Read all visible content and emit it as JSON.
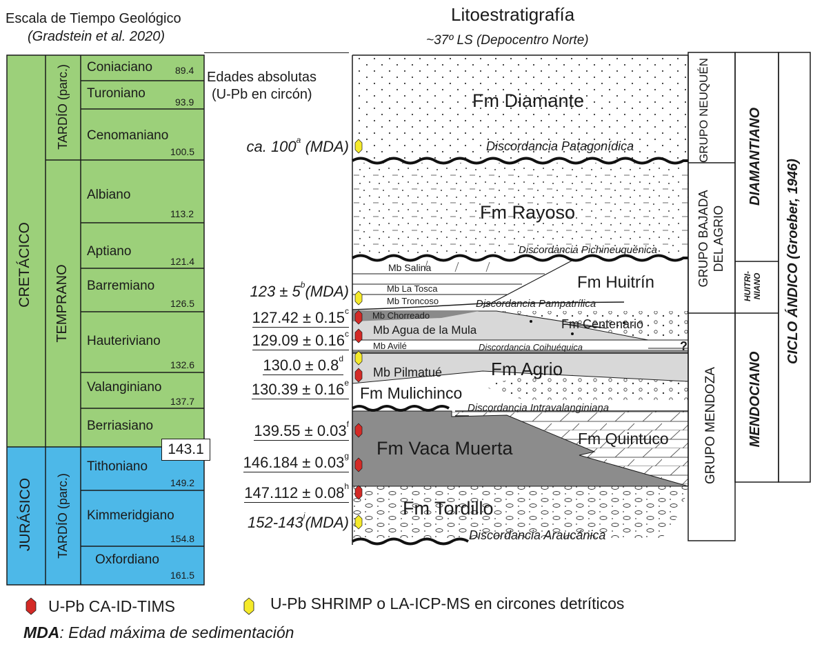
{
  "header": {
    "left_title": "Escala de Tiempo Geológico",
    "left_subtitle": "(Gradstein et al. 2020)",
    "right_title": "Litoestratigrafía",
    "right_subtitle_approx": "~",
    "right_subtitle": "37º LS (Depocentro Norte)"
  },
  "periods": {
    "cretacico": "CRETÁCICO",
    "jurasico": "JURÁSICO",
    "cret_tardio": "TARDÍO (parc.)",
    "cret_temprano": "TEMPRANO",
    "jur_tardio": "TARDÍO (parc.)",
    "boundary_age": "143.1",
    "cretaceous_color": "#9cd07a",
    "jurassic_color": "#4db8e8"
  },
  "stages": [
    {
      "name": "Coniaciano",
      "age": "89.4"
    },
    {
      "name": "Turoniano",
      "age": "93.9"
    },
    {
      "name": "Cenomaniano",
      "age": "100.5"
    },
    {
      "name": "Albiano",
      "age": "113.2"
    },
    {
      "name": "Aptiano",
      "age": "121.4"
    },
    {
      "name": "Barremiano",
      "age": "126.5"
    },
    {
      "name": "Hauteriviano",
      "age": "132.6"
    },
    {
      "name": "Valanginiano",
      "age": "137.7"
    },
    {
      "name": "Berriasiano",
      "age": ""
    },
    {
      "name": "Tithoniano",
      "age": "149.2"
    },
    {
      "name": "Kimmeridgiano",
      "age": "154.8"
    },
    {
      "name": "Oxfordiano",
      "age": "161.5"
    }
  ],
  "ages_header": {
    "line1": "Edades absolutas",
    "line2": "(U-Pb en circón)"
  },
  "ages": [
    {
      "text": "ca. 100",
      "sup": "a",
      "suffix": " (MDA)",
      "italic": true,
      "underline": false,
      "markers": [
        "shrimp"
      ]
    },
    {
      "text": "123 ± 5",
      "sup": "b",
      "suffix": "(MDA)",
      "italic": true,
      "underline": false,
      "markers": [
        "shrimp"
      ]
    },
    {
      "text": "127.42 ± 0.15",
      "sup": "c",
      "suffix": "",
      "italic": false,
      "underline": true,
      "markers": [
        "tims"
      ]
    },
    {
      "text": "129.09 ± 0.16",
      "sup": "c",
      "suffix": "",
      "italic": false,
      "underline": true,
      "markers": [
        "tims"
      ]
    },
    {
      "text": "130.0 ± 0.8",
      "sup": "d",
      "suffix": "",
      "italic": false,
      "underline": true,
      "markers": [
        "shrimp",
        "tims"
      ]
    },
    {
      "text": "130.39 ± 0.16",
      "sup": "e",
      "suffix": "",
      "italic": false,
      "underline": true,
      "markers": []
    },
    {
      "text": "139.55 ± 0.03",
      "sup": "f",
      "suffix": "",
      "italic": false,
      "underline": true,
      "markers": [
        "tims"
      ]
    },
    {
      "text": "146.184 ± 0.03",
      "sup": "g",
      "suffix": "",
      "italic": false,
      "underline": true,
      "markers": [
        "tims"
      ]
    },
    {
      "text": "147.112 ± 0.08",
      "sup": "h",
      "suffix": "",
      "italic": false,
      "underline": true,
      "markers": [
        "tims"
      ]
    },
    {
      "text": "152-143",
      "sup": "i",
      "suffix": "(MDA)",
      "italic": true,
      "underline": false,
      "markers": [
        "shrimp"
      ]
    }
  ],
  "formations": {
    "diamante": "Fm Diamante",
    "rayoso": "Fm Rayoso",
    "huitrin": "Fm Huitrín",
    "centenario": "Fm Centenario",
    "agrio": "Fm Agrio",
    "mulichinco": "Fm Mulichinco",
    "quintuco": "Fm Quintuco",
    "vaca_muerta": "Fm Vaca Muerta",
    "tordillo": "Fm Tordillo"
  },
  "members": {
    "salina": "Mb Salina",
    "la_tosca": "Mb La Tosca",
    "troncoso": "Mb Troncoso",
    "chorreado": "Mb Chorreado",
    "agua_mula": "Mb Agua de la Mula",
    "avile": "Mb Avilé",
    "pilmatue": "Mb Pilmatué",
    "question": "?"
  },
  "unconformities": {
    "patagonidica": "Discordancia Patagonídica",
    "pichineuquenica": "Discordancia Pichineuquénica",
    "pampatrilica": "Discordancia Pampatrílica",
    "coihuequica": "Discordancia Coihuéquica",
    "intravalanginiana": "Discordancia Intravalanginiana",
    "araucanica": "Discordancia Araucánica"
  },
  "groups": {
    "neuquen": "GRUPO NEUQUÉN",
    "bajada": "GRUPO BAJADA DEL AGRIO",
    "mendoza": "GRUPO MENDOZA"
  },
  "cycles": {
    "diamantiano": "DIAMANTIANO",
    "huitriniano": "HUITRI- NIANO",
    "mendociano": "MENDOCIANO",
    "ciclo_andico": "CICLO ÁNDICO (Groeber, 1946)"
  },
  "legend": {
    "tims": "U-Pb CA-ID-TIMS",
    "shrimp": "U-Pb SHRIMP o LA-ICP-MS en circones detríticos",
    "mda_abbr": "MDA",
    "mda_def": ": Edad máxima de sedimentación",
    "tims_color": "#d42a26",
    "shrimp_color": "#f5ea2a"
  }
}
